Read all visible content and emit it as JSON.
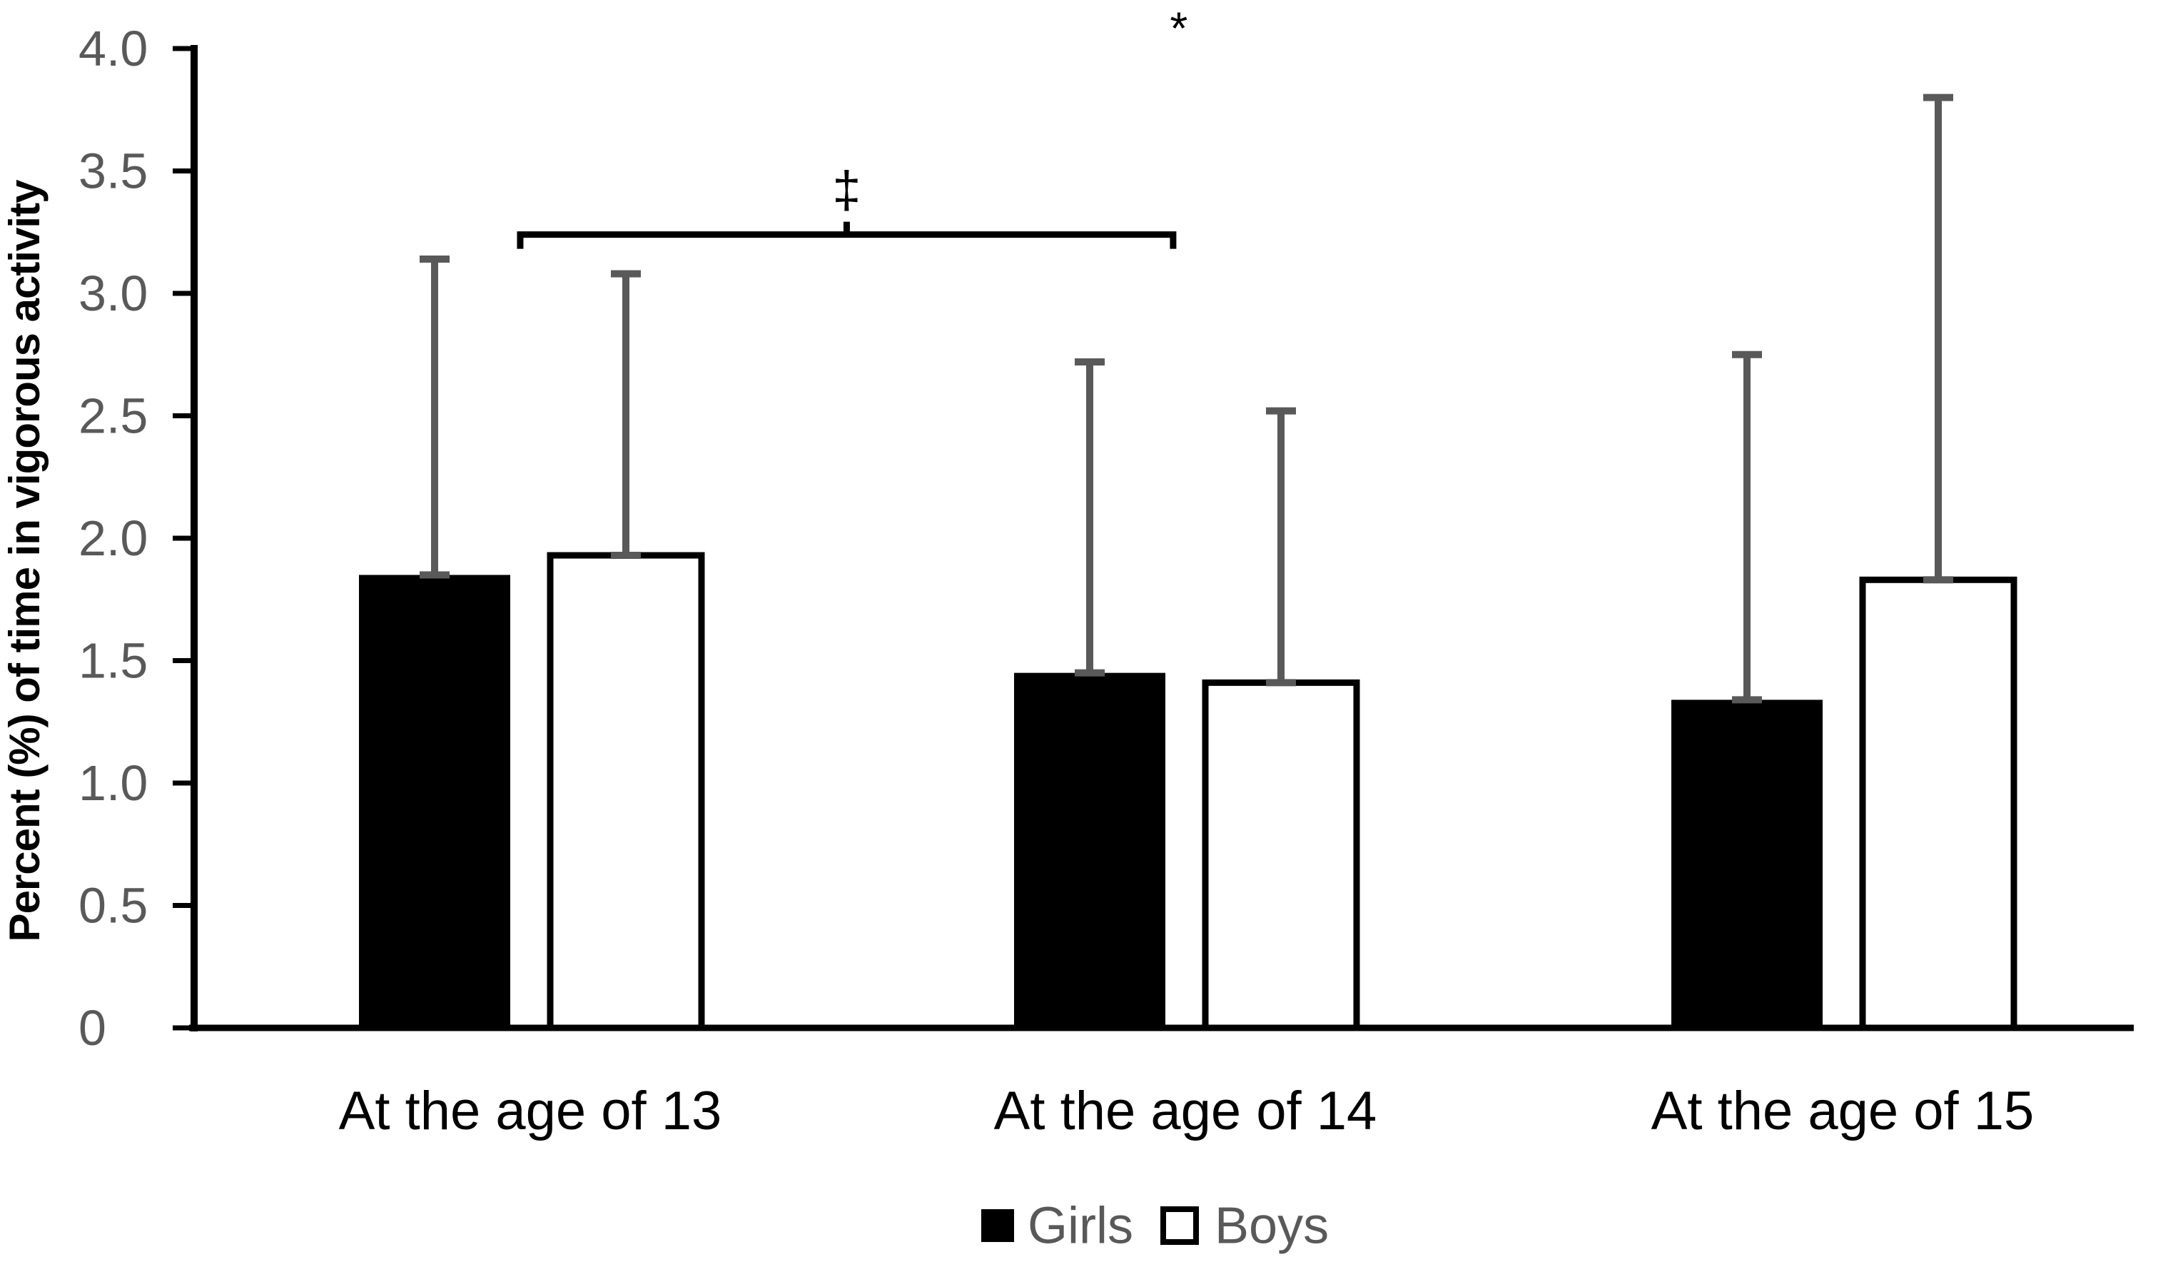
{
  "figure": {
    "background": "#ffffff"
  },
  "chart_data": {
    "type": "bar",
    "title": "",
    "xlabel": "",
    "ylabel": "Percent (%) of time in vigorous activity",
    "categories": [
      "At the age of 13",
      "At the age of 14",
      "At the age of 15"
    ],
    "series": [
      {
        "name": "Girls",
        "fill": "#000000",
        "outline": "#000000",
        "values": [
          1.85,
          1.45,
          1.34
        ],
        "error_top": [
          3.14,
          2.72,
          2.75
        ]
      },
      {
        "name": "Boys",
        "fill": "#ffffff",
        "outline": "#000000",
        "values": [
          1.93,
          1.41,
          1.83
        ],
        "error_top": [
          3.08,
          2.52,
          3.8
        ]
      }
    ],
    "ylim": [
      0,
      4.0
    ],
    "ytick_step": 0.5,
    "ytick_labels": [
      "0",
      "0.5",
      "1.0",
      "1.5",
      "2.0",
      "2.5",
      "3.0",
      "3.5",
      "4.0"
    ],
    "grid": false,
    "legend_position": "bottom-center",
    "annotations": [
      {
        "type": "bracket",
        "symbol": "‡",
        "x_start_frac": 0.2383,
        "x_end_frac": 0.5374,
        "y_value": 3.24
      },
      {
        "type": "text",
        "symbol": "*",
        "x_frac": 0.54,
        "y_value": 4.1
      }
    ],
    "colors": {
      "bar_girls": "#000000",
      "bar_boys_fill": "#ffffff",
      "bar_outline": "#000000",
      "error_bar": "#595959",
      "axis": "#000000",
      "tick_label": "#595959",
      "category_label": "#000000",
      "legend_text": "#595959",
      "annotation": "#000000",
      "ylabel_text": "#000000"
    }
  }
}
